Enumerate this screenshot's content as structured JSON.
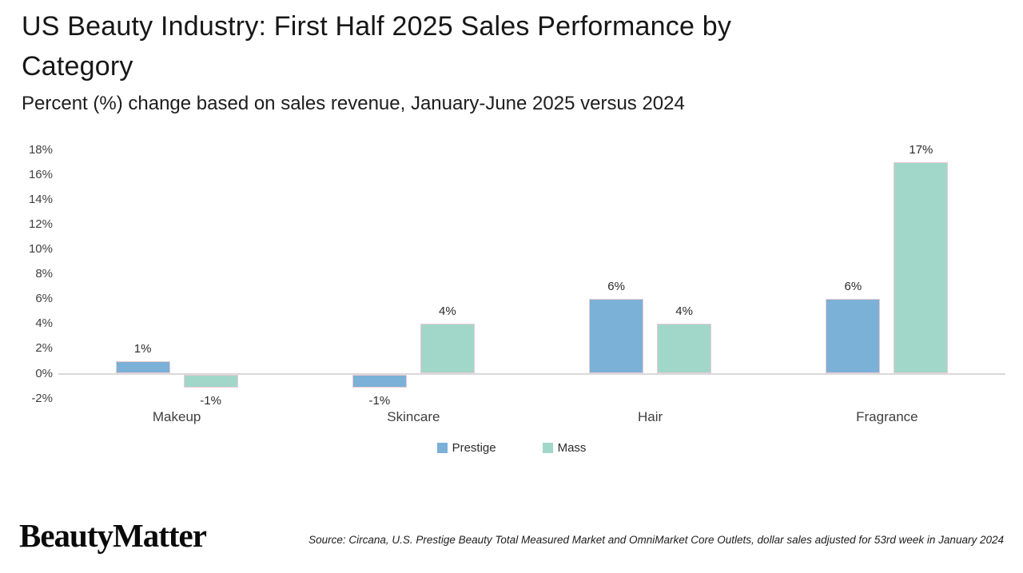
{
  "page": {
    "title": "US Beauty Industry: First Half 2025 Sales Performance by Category",
    "subtitle": "Percent (%) change based on sales revenue, January-June 2025 versus 2024",
    "logo_text": "BeautyMatter",
    "source": "Source: Circana, U.S. Prestige Beauty Total Measured Market and OmniMarket Core Outlets, dollar sales adjusted for 53rd week in January 2024"
  },
  "chart_data": {
    "type": "bar",
    "title": "US Beauty Industry: First Half 2025 Sales Performance by Category",
    "subtitle": "Percent (%) change based on sales revenue, January-June 2025 versus 2024",
    "categories": [
      "Makeup",
      "Skincare",
      "Hair",
      "Fragrance"
    ],
    "series": [
      {
        "name": "Prestige",
        "color": "#7bb0d7",
        "values": [
          1,
          -1,
          6,
          6
        ]
      },
      {
        "name": "Mass",
        "color": "#a0d7c9",
        "values": [
          -1,
          4,
          4,
          17
        ]
      }
    ],
    "value_suffix": "%",
    "data_labels": {
      "Makeup": {
        "Prestige": "1%",
        "Mass": "-1%"
      },
      "Skincare": {
        "Prestige": "-1%",
        "Mass": "4%"
      },
      "Hair": {
        "Prestige": "6%",
        "Mass": "4%"
      },
      "Fragrance": {
        "Prestige": "6%",
        "Mass": "17%"
      }
    },
    "y_ticks": [
      "18%",
      "16%",
      "14%",
      "12%",
      "10%",
      "8%",
      "6%",
      "4%",
      "2%",
      "0%",
      "-2%"
    ],
    "ylim": [
      -2,
      18
    ],
    "xlabel": "",
    "ylabel": "",
    "grid": false,
    "axis_line": "zero-baseline only",
    "legend_position": "bottom-center",
    "bar_border_color": "#ecc9d2"
  }
}
